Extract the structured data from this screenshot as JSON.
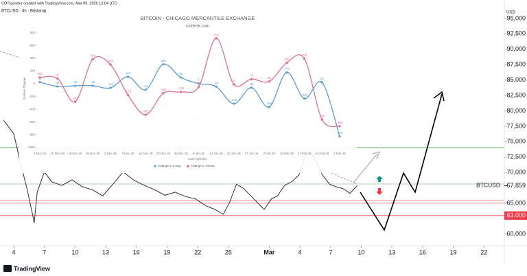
{
  "chart_data": [
    {
      "type": "line",
      "title": "BTCUSD · 4h · Bitstamp",
      "subtitle": "COTreporter created with TradingView.com, Mar 09, 2026 12:04 UTC",
      "y_label": "USD",
      "x": [
        -1.0,
        -0.5,
        0,
        0.7,
        1.3,
        1.8,
        2.0,
        2.3,
        3.0,
        3.7,
        4.7,
        5.7,
        6.7,
        7.7,
        8.7,
        9.7,
        10.7,
        11.7,
        12.8,
        13.8,
        14.8,
        15.8,
        16.8,
        17.8,
        18.8,
        19.7,
        20.5,
        21.1,
        21.8,
        22.5,
        23.5,
        24.5,
        25.2,
        25.8,
        26.5,
        27.2,
        27.9,
        28.5,
        28.9,
        29.5,
        30.2,
        30.9,
        31.5,
        32.2,
        32.9,
        33.6
      ],
      "series": [
        {
          "name": "BTCUSD",
          "color": "#2a2e39",
          "values": [
            78500,
            77400,
            76300,
            71300,
            67400,
            63500,
            61800,
            66800,
            70100,
            68500,
            67900,
            68800,
            67700,
            67200,
            66200,
            68100,
            70100,
            68800,
            67900,
            67200,
            66300,
            66800,
            66100,
            65700,
            64600,
            64000,
            63200,
            65100,
            68100,
            67400,
            65700,
            64000,
            65700,
            66200,
            67900,
            68500,
            69600,
            72600,
            73500,
            72100,
            69600,
            68100,
            67700,
            67400,
            66600,
            67859
          ]
        }
      ],
      "xlim": [
        -1.34,
        48
      ],
      "xticks": [
        {
          "value": 0,
          "label": "4"
        },
        {
          "value": 3,
          "label": "7"
        },
        {
          "value": 6,
          "label": "10"
        },
        {
          "value": 9,
          "label": "13"
        },
        {
          "value": 12,
          "label": "16"
        },
        {
          "value": 15,
          "label": "19"
        },
        {
          "value": 18,
          "label": "22"
        },
        {
          "value": 21,
          "label": "25"
        },
        {
          "value": 25,
          "label": "Mar"
        },
        {
          "value": 28,
          "label": "4"
        },
        {
          "value": 31,
          "label": "7"
        },
        {
          "value": 34,
          "label": "10"
        },
        {
          "value": 37,
          "label": "13"
        },
        {
          "value": 40,
          "label": "16"
        },
        {
          "value": 43,
          "label": "19"
        },
        {
          "value": 46,
          "label": "22"
        }
      ],
      "ylim": [
        58100,
        98000
      ],
      "yticks": [
        {
          "value": 60000,
          "label": "60,000"
        },
        {
          "value": 65000,
          "label": "65,000"
        },
        {
          "value": 70000,
          "label": "70,000"
        },
        {
          "value": 72500,
          "label": "72,500"
        },
        {
          "value": 75000,
          "label": "75,000"
        },
        {
          "value": 77500,
          "label": "77,500"
        },
        {
          "value": 80000,
          "label": "80,000"
        },
        {
          "value": 82500,
          "label": "82,500"
        },
        {
          "value": 85000,
          "label": "85,000"
        },
        {
          "value": 87500,
          "label": "87,500"
        },
        {
          "value": 90000,
          "label": "90,000"
        },
        {
          "value": 92500,
          "label": "92,500"
        },
        {
          "value": 95000,
          "label": "95,000"
        }
      ],
      "price_label": {
        "value": 67859,
        "label": "67,859"
      },
      "level": {
        "value": 63000,
        "label": "63,000",
        "color": "#f23645"
      },
      "brand": "TradingView"
    },
    {
      "type": "line",
      "title": "BITCOIN - CHICAGO MERCANTILE EXCHANGE",
      "subtitle": "cotdesk.com",
      "x_label": "Date (Weeks)",
      "y_label": "Position Change",
      "categories": [
        "4 Nov 25",
        "10 Nov 25",
        "18 Nov 25",
        "25 Nov 25",
        "2 Dec 25",
        "9 Dec 25",
        "16 Dec 25",
        "23 Dec 25",
        "30 Dec 25",
        "6 Jan 26",
        "13 Jan 26",
        "20 Jan 26",
        "27 Jan 26",
        "3 Feb 26",
        "10 Feb 26",
        "17 Feb 26",
        "24 Feb 26",
        "3 Mar 26"
      ],
      "series": [
        {
          "name": "Change in Longs",
          "color": "#5b9bd5",
          "marker": "circle",
          "values": [
            26,
            -41,
            -31,
            -29,
            -64,
            110,
            -93,
            305,
            98,
            5,
            -45,
            -312,
            -60,
            -364,
            179,
            -232,
            22,
            -826
          ]
        },
        {
          "name": "Change in Shorts",
          "color": "#e0708c",
          "marker": "diamond",
          "values": [
            100,
            82,
            -281,
            384,
            303,
            -176,
            -485,
            -148,
            -129,
            -51,
            713,
            -8,
            73,
            36,
            328,
            393,
            -560,
            -664
          ]
        }
      ],
      "ylim": [
        -1000,
        850
      ],
      "yticks": [
        800,
        600,
        400,
        200,
        0,
        -200,
        -400,
        -600,
        -800,
        -1000
      ],
      "grid": false,
      "legend": "bottom",
      "data_labels": true
    }
  ]
}
